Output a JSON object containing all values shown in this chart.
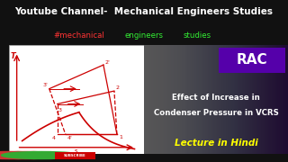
{
  "bg_color": "#111111",
  "panel_bg": "#ffffff",
  "title_line1": "Youtube Channel-  Mechanical Engineers Studies",
  "title1_color": "#ffffff",
  "rac_text": "RAC",
  "rac_bg": "#4b0082",
  "main_text_line1": "Effect of Increase in",
  "main_text_line2": "Condenser Pressure in VCRS",
  "lecture_text": "Lecture in Hindi",
  "main_text_color": "#ffffff",
  "lecture_color": "#ffff00",
  "curve_color": "#cc0000",
  "diagram_bg": "#ffffff"
}
